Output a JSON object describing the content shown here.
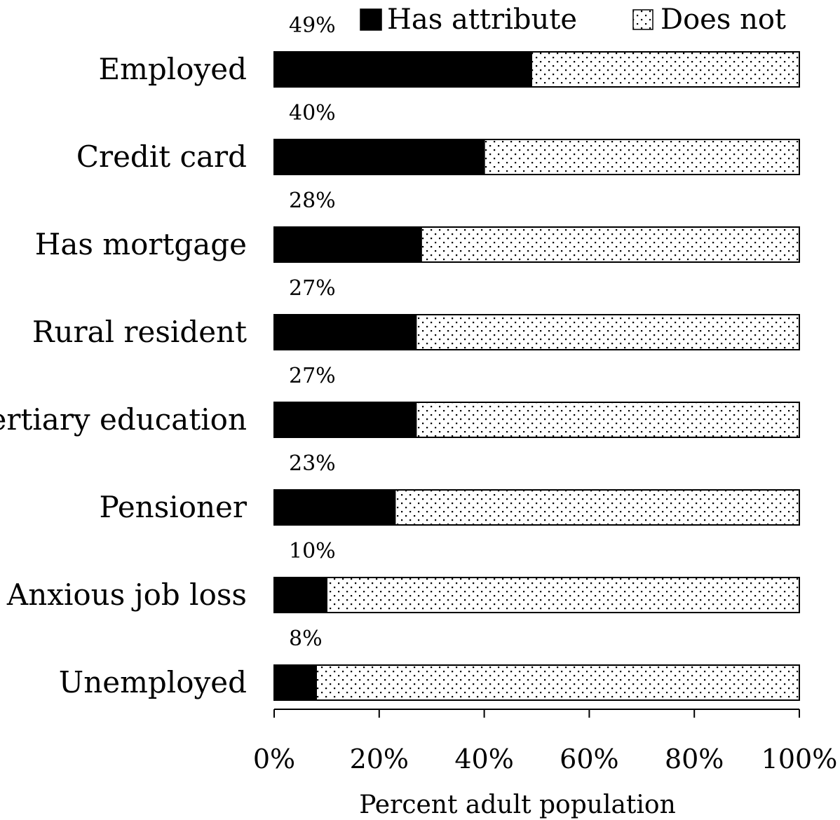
{
  "chart_data": {
    "type": "bar",
    "orientation": "horizontal",
    "stacked": true,
    "categories": [
      "Employed",
      "Credit card",
      "Has mortgage",
      "Rural resident",
      "Tertiary education",
      "Pensioner",
      "Anxious job loss",
      "Unemployed"
    ],
    "series": [
      {
        "name": "Has attribute",
        "values": [
          49,
          40,
          28,
          27,
          27,
          23,
          10,
          8
        ],
        "color": "#000000",
        "pattern": "solid"
      },
      {
        "name": "Does not",
        "values": [
          51,
          60,
          72,
          73,
          73,
          77,
          90,
          92
        ],
        "color": "#ffffff",
        "pattern": "dotted"
      }
    ],
    "value_labels": [
      "49%",
      "40%",
      "28%",
      "27%",
      "27%",
      "23%",
      "10%",
      "8%"
    ],
    "xlabel": "Percent adult population",
    "xlim": [
      0,
      100
    ],
    "xticks": [
      0,
      20,
      40,
      60,
      80,
      100
    ],
    "xtick_labels": [
      "0%",
      "20%",
      "40%",
      "60%",
      "80%",
      "100%"
    ],
    "legend_position": "top-right",
    "grid": false
  }
}
